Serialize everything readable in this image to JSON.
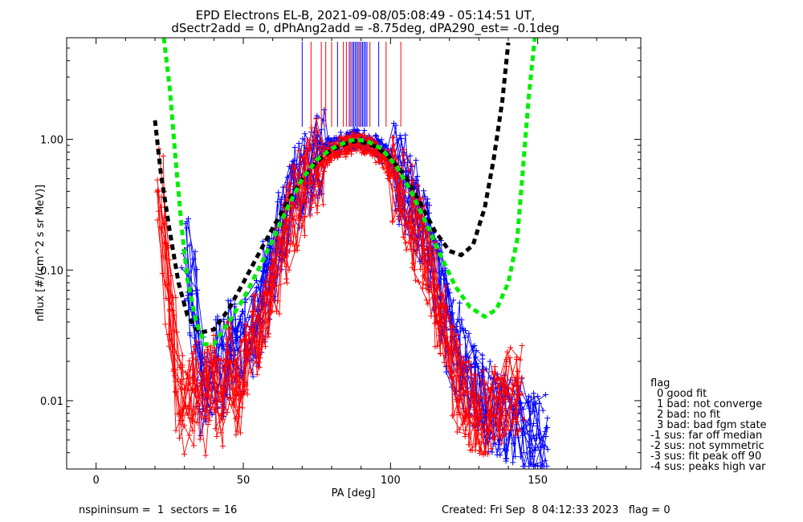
{
  "chart_data": {
    "type": "line",
    "title": "EPD Electrons EL-B, 2021-09-08/05:08:49 - 05:14:51 UT,",
    "subtitle": "dSectr2add = 0, dPhAng2add = -8.75deg, dPA290_est=  -0.1deg",
    "xlabel": "PA [deg]",
    "ylabel": "nflux [#/(cm^2 s sr MeV)]",
    "xlim": [
      -10,
      185
    ],
    "ylim": [
      0.003,
      6
    ],
    "yscale": "log",
    "x_ticks": [
      {
        "value": 0,
        "label": "0"
      },
      {
        "value": 50,
        "label": "50"
      },
      {
        "value": 100,
        "label": "100"
      },
      {
        "value": 150,
        "label": "150"
      }
    ],
    "y_ticks": [
      {
        "value": 0.01,
        "label": "0.01"
      },
      {
        "value": 0.1,
        "label": "0.10"
      },
      {
        "value": 1,
        "label": "1.00"
      }
    ],
    "vertical_markers": {
      "blue": [
        70,
        82,
        86,
        87,
        87.5,
        88,
        88.5,
        89,
        89.5,
        90,
        90.5,
        91,
        91.5,
        92,
        96
      ],
      "red": [
        73,
        76.5,
        78,
        80,
        84,
        85,
        86.5,
        89.5,
        93,
        98.5,
        103.5
      ]
    },
    "fit_curves": [
      {
        "color": "#000000",
        "points": [
          [
            20,
            1.4
          ],
          [
            22,
            0.55
          ],
          [
            25,
            0.2
          ],
          [
            28,
            0.08
          ],
          [
            31,
            0.045
          ],
          [
            35,
            0.033
          ],
          [
            40,
            0.035
          ],
          [
            45,
            0.05
          ],
          [
            50,
            0.08
          ],
          [
            55,
            0.13
          ],
          [
            60,
            0.21
          ],
          [
            65,
            0.33
          ],
          [
            70,
            0.5
          ],
          [
            75,
            0.68
          ],
          [
            80,
            0.83
          ],
          [
            85,
            0.93
          ],
          [
            88,
            0.97
          ],
          [
            90,
            0.96
          ],
          [
            95,
            0.88
          ],
          [
            100,
            0.72
          ],
          [
            105,
            0.52
          ],
          [
            110,
            0.33
          ],
          [
            115,
            0.2
          ],
          [
            120,
            0.14
          ],
          [
            124,
            0.13
          ],
          [
            128,
            0.155
          ],
          [
            132,
            0.3
          ],
          [
            135,
            0.7
          ],
          [
            138,
            2.0
          ],
          [
            140,
            5.5
          ]
        ]
      },
      {
        "color": "#00ee00",
        "points": [
          [
            23,
            6
          ],
          [
            25,
            2.5
          ],
          [
            27,
            0.7
          ],
          [
            29,
            0.22
          ],
          [
            31,
            0.085
          ],
          [
            34,
            0.04
          ],
          [
            37,
            0.027
          ],
          [
            40,
            0.027
          ],
          [
            45,
            0.04
          ],
          [
            50,
            0.06
          ],
          [
            55,
            0.1
          ],
          [
            60,
            0.17
          ],
          [
            65,
            0.3
          ],
          [
            70,
            0.5
          ],
          [
            75,
            0.7
          ],
          [
            80,
            0.85
          ],
          [
            85,
            0.96
          ],
          [
            88,
            1.0
          ],
          [
            92,
            0.97
          ],
          [
            97,
            0.85
          ],
          [
            102,
            0.62
          ],
          [
            107,
            0.4
          ],
          [
            112,
            0.23
          ],
          [
            117,
            0.13
          ],
          [
            122,
            0.075
          ],
          [
            127,
            0.052
          ],
          [
            132,
            0.044
          ],
          [
            136,
            0.05
          ],
          [
            140,
            0.08
          ],
          [
            143,
            0.17
          ],
          [
            145,
            0.6
          ],
          [
            147,
            2.2
          ],
          [
            149,
            6
          ]
        ]
      }
    ],
    "series": [
      {
        "name": "",
        "color": "#0000ff",
        "points": [
          [
            30,
            0.13
          ],
          [
            33,
            0.07
          ],
          [
            35,
            0.015
          ],
          [
            37,
            0.012
          ],
          [
            40,
            0.016
          ],
          [
            42,
            0.02
          ],
          [
            44,
            0.015
          ],
          [
            46,
            0.027
          ],
          [
            48,
            0.02
          ],
          [
            50,
            0.025
          ],
          [
            52,
            0.03
          ],
          [
            54,
            0.04
          ],
          [
            56,
            0.05
          ],
          [
            58,
            0.08
          ],
          [
            60,
            0.12
          ],
          [
            62,
            0.18
          ],
          [
            64,
            0.25
          ],
          [
            66,
            0.33
          ],
          [
            68,
            0.4
          ],
          [
            70,
            0.5
          ],
          [
            72,
            0.6
          ],
          [
            74,
            0.7
          ],
          [
            76,
            0.77
          ],
          [
            78,
            0.83
          ],
          [
            80,
            0.88
          ],
          [
            82,
            0.92
          ],
          [
            84,
            0.95
          ],
          [
            86,
            0.98
          ],
          [
            88,
            1.0
          ],
          [
            90,
            0.99
          ],
          [
            92,
            0.97
          ],
          [
            94,
            0.93
          ],
          [
            96,
            0.86
          ],
          [
            98,
            0.78
          ],
          [
            100,
            0.7
          ],
          [
            102,
            0.6
          ],
          [
            104,
            0.5
          ],
          [
            106,
            0.4
          ],
          [
            108,
            0.32
          ],
          [
            110,
            0.24
          ],
          [
            112,
            0.17
          ],
          [
            114,
            0.12
          ],
          [
            116,
            0.08
          ],
          [
            118,
            0.055
          ],
          [
            120,
            0.035
          ],
          [
            122,
            0.025
          ],
          [
            124,
            0.02
          ],
          [
            126,
            0.016
          ],
          [
            128,
            0.013
          ],
          [
            130,
            0.012
          ],
          [
            132,
            0.01
          ],
          [
            134,
            0.009
          ],
          [
            136,
            0.008
          ],
          [
            138,
            0.008
          ],
          [
            140,
            0.007
          ],
          [
            142,
            0.0075
          ],
          [
            144,
            0.007
          ],
          [
            146,
            0.006
          ],
          [
            148,
            0.006
          ],
          [
            150,
            0.0055
          ],
          [
            152,
            0.005
          ]
        ]
      },
      {
        "name": "",
        "color": "#ff0000",
        "points": [
          [
            22,
            0.45
          ],
          [
            24,
            0.08
          ],
          [
            26,
            0.028
          ],
          [
            28,
            0.011
          ],
          [
            30,
            0.0075
          ],
          [
            32,
            0.01
          ],
          [
            34,
            0.014
          ],
          [
            36,
            0.008
          ],
          [
            38,
            0.012
          ],
          [
            40,
            0.018
          ],
          [
            42,
            0.01
          ],
          [
            44,
            0.014
          ],
          [
            46,
            0.02
          ],
          [
            48,
            0.012
          ],
          [
            50,
            0.018
          ],
          [
            52,
            0.025
          ],
          [
            54,
            0.03
          ],
          [
            56,
            0.035
          ],
          [
            58,
            0.05
          ],
          [
            60,
            0.07
          ],
          [
            62,
            0.1
          ],
          [
            64,
            0.15
          ],
          [
            66,
            0.22
          ],
          [
            68,
            0.3
          ],
          [
            70,
            0.38
          ],
          [
            72,
            0.48
          ],
          [
            74,
            0.57
          ],
          [
            76,
            0.65
          ],
          [
            78,
            0.72
          ],
          [
            80,
            0.78
          ],
          [
            82,
            0.84
          ],
          [
            84,
            0.88
          ],
          [
            86,
            0.92
          ],
          [
            88,
            0.95
          ],
          [
            90,
            0.93
          ],
          [
            92,
            0.9
          ],
          [
            94,
            0.85
          ],
          [
            96,
            0.78
          ],
          [
            98,
            0.7
          ],
          [
            100,
            0.6
          ],
          [
            102,
            0.5
          ],
          [
            104,
            0.4
          ],
          [
            106,
            0.3
          ],
          [
            108,
            0.22
          ],
          [
            110,
            0.16
          ],
          [
            112,
            0.11
          ],
          [
            114,
            0.075
          ],
          [
            116,
            0.05
          ],
          [
            118,
            0.034
          ],
          [
            120,
            0.024
          ],
          [
            122,
            0.017
          ],
          [
            124,
            0.012
          ],
          [
            126,
            0.01
          ],
          [
            128,
            0.009
          ],
          [
            130,
            0.008
          ],
          [
            132,
            0.0085
          ],
          [
            134,
            0.009
          ],
          [
            136,
            0.009
          ],
          [
            138,
            0.01
          ],
          [
            140,
            0.011
          ],
          [
            142,
            0.012
          ],
          [
            144,
            0.013
          ]
        ]
      }
    ],
    "legend": {
      "title": "flag",
      "position": "right",
      "items": [
        "0 good fit",
        "1 bad: not converge",
        "2 bad: no fit",
        "3 bad: bad fgm state",
        "-1 sus: far off median",
        "-2 sus: not symmetric",
        "-3 sus: fit peak off 90",
        "-4 sus: peaks high var"
      ]
    }
  },
  "footer": {
    "left": "nspininsum =  1  sectors = 16",
    "right": "Created: Fri Sep  8 04:12:33 2023   flag = 0"
  },
  "colors": {
    "blue": "#0000ff",
    "red": "#ff0000",
    "black_fit": "#000000",
    "green_fit": "#00ee00"
  }
}
